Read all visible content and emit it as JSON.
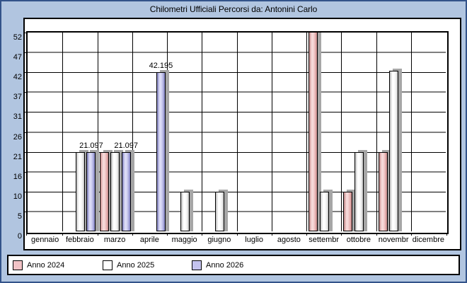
{
  "window": {
    "title": "Chilometri Ufficiali Percorsi da: Antonini Carlo"
  },
  "colors": {
    "background": "#b1c5e0",
    "window_border": "#33538a",
    "canvas_bg": "#ffffff",
    "plot_border": "#000000",
    "grid_major": "#000000",
    "grid_minor": "#7f7f7f",
    "bar_shadow": "#a6a6a6",
    "text": "#000000"
  },
  "chart_data": {
    "type": "bar",
    "title": "Chilometri Ufficiali Percorsi da: Antonini Carlo",
    "xlabel": "",
    "ylabel": "",
    "grid": true,
    "legend_position": "bottom",
    "y_max": 52.74,
    "y_ticks": [
      {
        "value": 0,
        "label": "0"
      },
      {
        "value": 5.274,
        "label": "5"
      },
      {
        "value": 10.548,
        "label": "10"
      },
      {
        "value": 15.822,
        "label": "16"
      },
      {
        "value": 21.096,
        "label": "21"
      },
      {
        "value": 26.37,
        "label": "26"
      },
      {
        "value": 31.644,
        "label": "31"
      },
      {
        "value": 36.918,
        "label": "37"
      },
      {
        "value": 42.192,
        "label": "42"
      },
      {
        "value": 47.466,
        "label": "47"
      },
      {
        "value": 52.74,
        "label": "52"
      }
    ],
    "categories": [
      "gennaio",
      "febbraio",
      "marzo",
      "aprile",
      "maggio",
      "giugno",
      "luglio",
      "agosto",
      "settembr",
      "ottobre",
      "novembr",
      "dicembre"
    ],
    "series": [
      {
        "name": "Anno 2024",
        "swatch": "#f2c3c6",
        "fill": {
          "dark": "#c08585",
          "light": "#f7d9d9",
          "base": "#e9b4b4"
        },
        "values": [
          0,
          0,
          21.097,
          0,
          0,
          0,
          0,
          0,
          52.74,
          10.5,
          21.097,
          0
        ],
        "clipped_month_index": 8,
        "note": "settembr bar exceeds the axis maximum and is clipped at the plot top"
      },
      {
        "name": "Anno 2025",
        "swatch": "#ffffff",
        "fill": {
          "dark": "#bdbdbd",
          "light": "#ffffff",
          "base": "#efefef"
        },
        "values": [
          0,
          21.097,
          21.097,
          0,
          10.5,
          10.5,
          0,
          0,
          10.5,
          21.097,
          42.6,
          0
        ],
        "clipped_month_index": -1
      },
      {
        "name": "Anno 2026",
        "swatch": "#c4c3ee",
        "fill": {
          "dark": "#7c7cbe",
          "light": "#dcdcf6",
          "base": "#b2b2e2"
        },
        "values": [
          0,
          21.097,
          21.097,
          42.195,
          0,
          0,
          0,
          0,
          0,
          0,
          0,
          0
        ],
        "clipped_month_index": -1
      }
    ],
    "bar_labels": [
      {
        "month_index": 1,
        "series_index": 2,
        "text": "21.097"
      },
      {
        "month_index": 2,
        "series_index": 2,
        "text": "21.097"
      },
      {
        "month_index": 3,
        "series_index": 2,
        "text": "42.195"
      }
    ]
  }
}
